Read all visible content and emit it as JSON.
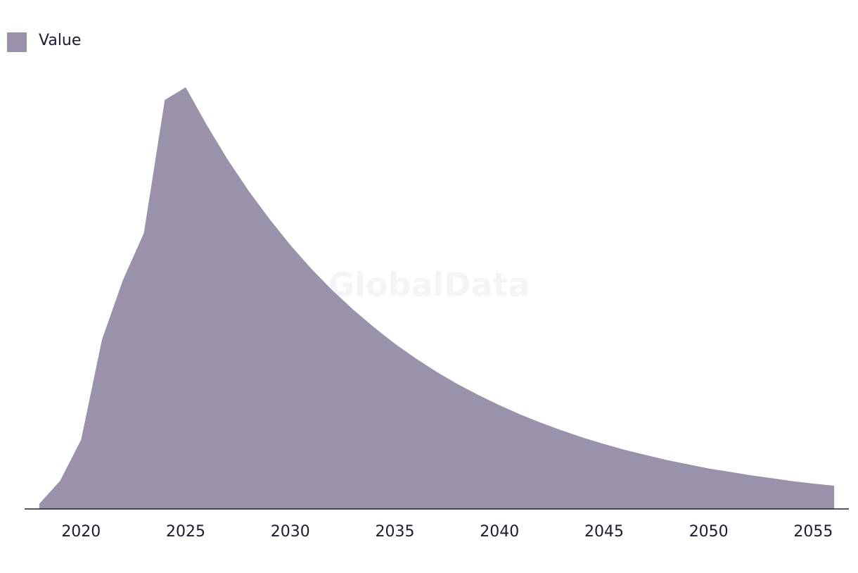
{
  "chart_data": {
    "type": "area",
    "watermark": "GlobalData",
    "x": [
      2018,
      2019,
      2020,
      2021,
      2022,
      2023,
      2024,
      2025,
      2026,
      2027,
      2028,
      2029,
      2030,
      2031,
      2032,
      2033,
      2034,
      2035,
      2036,
      2037,
      2038,
      2039,
      2040,
      2041,
      2042,
      2043,
      2044,
      2045,
      2046,
      2047,
      2048,
      2049,
      2050,
      2051,
      2052,
      2053,
      2054,
      2055,
      2056
    ],
    "series": [
      {
        "name": "Value",
        "color": "#9a91aa",
        "values": [
          1.2,
          6.7,
          16.4,
          40.2,
          54.3,
          65.4,
          97.0,
          100,
          91.1,
          82.9,
          75.5,
          68.8,
          62.6,
          57.0,
          51.9,
          47.3,
          43.1,
          39.2,
          35.7,
          32.5,
          29.6,
          27.0,
          24.6,
          22.4,
          20.4,
          18.6,
          16.9,
          15.4,
          14.0,
          12.8,
          11.6,
          10.6,
          9.6,
          8.8,
          8.0,
          7.3,
          6.6,
          6.0,
          5.5
        ]
      }
    ],
    "xlim": [
      2017.3,
      2056.7
    ],
    "xticks": [
      2020,
      2025,
      2030,
      2035,
      2040,
      2045,
      2050,
      2055
    ],
    "ylim": [
      0,
      100
    ],
    "legend": "top-left"
  }
}
